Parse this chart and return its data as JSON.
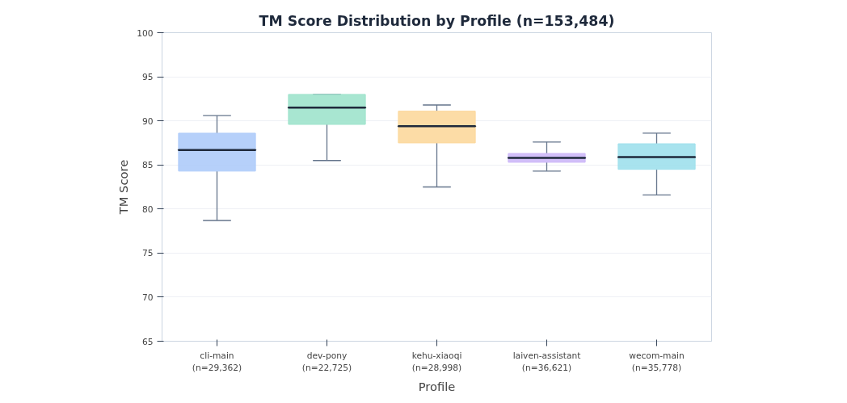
{
  "chart_data": {
    "type": "box",
    "title": "TM Score Distribution by Profile (n=153,484)",
    "xlabel": "Profile",
    "ylabel": "TM Score",
    "categories": [
      "cli-main\n(n=29,362)",
      "dev-pony\n(n=22,725)",
      "kehu-xiaoqi\n(n=28,998)",
      "laiven-assistant\n(n=36,621)",
      "wecom-main\n(n=35,778)"
    ],
    "colors": [
      "#aecbfa",
      "#9ee3cc",
      "#fcd89c",
      "#cdb8f8",
      "#9ee0ec"
    ],
    "boxes": [
      {
        "low": 78.7,
        "q1": 84.3,
        "median": 86.7,
        "q3": 88.6,
        "high": 90.6
      },
      {
        "low": 85.5,
        "q1": 89.6,
        "median": 91.5,
        "q3": 93.0,
        "high": 93.0
      },
      {
        "low": 82.5,
        "q1": 87.5,
        "median": 89.4,
        "q3": 91.1,
        "high": 91.8
      },
      {
        "low": 84.3,
        "q1": 85.3,
        "median": 85.8,
        "q3": 86.3,
        "high": 87.6
      },
      {
        "low": 81.6,
        "q1": 84.5,
        "median": 85.9,
        "q3": 87.4,
        "high": 88.6
      }
    ],
    "ylim": [
      65,
      100
    ],
    "yticks": [
      65,
      70,
      75,
      80,
      85,
      90,
      95,
      100
    ],
    "grid": "y"
  }
}
